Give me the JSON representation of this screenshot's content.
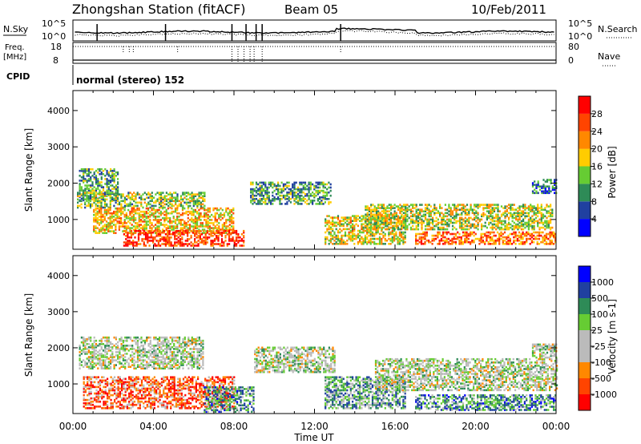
{
  "header": {
    "station": "Zhongshan Station (fitACF)",
    "beam": "Beam 05",
    "date": "10/Feb/2011"
  },
  "top_panels": {
    "nsky_label": "N.Sky",
    "nsky_ticks": [
      "10^5",
      "10^0"
    ],
    "nsearch_label": "N.Search",
    "nsearch_ticks": [
      "10^5",
      "10^0"
    ],
    "freq_label": "Freq.",
    "freq_unit": "[MHz]",
    "freq_ticks": [
      "18",
      "8"
    ],
    "nave_label": "Nave",
    "nave_ticks": [
      "80",
      "0"
    ],
    "cpid_label": "CPID",
    "cpid_value": "normal (stereo) 152"
  },
  "colors": {
    "power_scale": [
      "#0000ff",
      "#2040a0",
      "#2e8b57",
      "#66cc33",
      "#ffcc00",
      "#ff8800",
      "#ff4400",
      "#ff0000"
    ],
    "velocity_scale": [
      "#ff0000",
      "#ff4400",
      "#ff8800",
      "#bbbbbb",
      "#bbbbbb",
      "#66cc33",
      "#2e8b57",
      "#2040a0",
      "#0000ff"
    ]
  },
  "chart_data": [
    {
      "type": "heatmap",
      "quantity": "power",
      "ylabel": "Slant Range [km]",
      "ylim": [
        180,
        4550
      ],
      "y_ticks": [
        "4000",
        "3000",
        "2000",
        "1000"
      ],
      "y_tick_values": [
        4000,
        3000,
        2000,
        1000
      ],
      "colorbar_label": "Power [dB]",
      "colorbar_ticks": [
        "28",
        "24",
        "20",
        "16",
        "12",
        "8",
        "4"
      ],
      "colorbar_range": [
        0,
        32
      ],
      "bands": [
        {
          "t0": 0.3,
          "t1": 2.2,
          "r0": 1500,
          "r1": 2400,
          "level": 0.35
        },
        {
          "t0": 0.2,
          "t1": 6.5,
          "r0": 1300,
          "r1": 1750,
          "level": 0.45
        },
        {
          "t0": 1.0,
          "t1": 8.0,
          "r0": 600,
          "r1": 1300,
          "level": 0.6
        },
        {
          "t0": 2.5,
          "t1": 8.5,
          "r0": 250,
          "r1": 700,
          "level": 0.85
        },
        {
          "t0": 8.8,
          "t1": 12.8,
          "r0": 1400,
          "r1": 2000,
          "level": 0.35
        },
        {
          "t0": 12.5,
          "t1": 16.5,
          "r0": 300,
          "r1": 1100,
          "level": 0.55
        },
        {
          "t0": 14.5,
          "t1": 23.8,
          "r0": 700,
          "r1": 1400,
          "level": 0.5
        },
        {
          "t0": 17.0,
          "t1": 24.0,
          "r0": 300,
          "r1": 650,
          "level": 0.75
        },
        {
          "t0": 22.8,
          "t1": 24.0,
          "r0": 1700,
          "r1": 2100,
          "level": 0.25
        }
      ]
    },
    {
      "type": "heatmap",
      "quantity": "velocity",
      "ylabel": "Slant Range [km]",
      "ylim": [
        180,
        4550
      ],
      "y_ticks": [
        "4000",
        "3000",
        "2000",
        "1000"
      ],
      "y_tick_values": [
        4000,
        3000,
        2000,
        1000
      ],
      "colorbar_label": "Velocity [m s-1]",
      "colorbar_ticks": [
        "1000",
        "500",
        "100",
        "25",
        "-25",
        "-100",
        "-500",
        "-1000"
      ],
      "colorbar_range": [
        -1200,
        1200
      ],
      "bands": [
        {
          "t0": 0.3,
          "t1": 6.5,
          "r0": 1400,
          "r1": 2300,
          "level": 0.5
        },
        {
          "t0": 0.5,
          "t1": 8.0,
          "r0": 300,
          "r1": 1200,
          "level": 0.2
        },
        {
          "t0": 6.5,
          "t1": 9.0,
          "r0": 200,
          "r1": 900,
          "level": 0.7
        },
        {
          "t0": 9.0,
          "t1": 13.0,
          "r0": 1300,
          "r1": 2000,
          "level": 0.5
        },
        {
          "t0": 12.5,
          "t1": 16.5,
          "r0": 300,
          "r1": 1200,
          "level": 0.65
        },
        {
          "t0": 15.0,
          "t1": 24.0,
          "r0": 800,
          "r1": 1700,
          "level": 0.5
        },
        {
          "t0": 17.0,
          "t1": 24.0,
          "r0": 250,
          "r1": 700,
          "level": 0.7
        },
        {
          "t0": 22.8,
          "t1": 24.0,
          "r0": 1700,
          "r1": 2100,
          "level": 0.5
        }
      ]
    }
  ],
  "x_axis": {
    "xlabel": "Time UT",
    "ticks": [
      "00:00",
      "04:00",
      "08:00",
      "12:00",
      "16:00",
      "20:00",
      "00:00"
    ],
    "tick_values": [
      0,
      4,
      8,
      12,
      16,
      20,
      24
    ],
    "xlim": [
      0,
      24
    ]
  }
}
